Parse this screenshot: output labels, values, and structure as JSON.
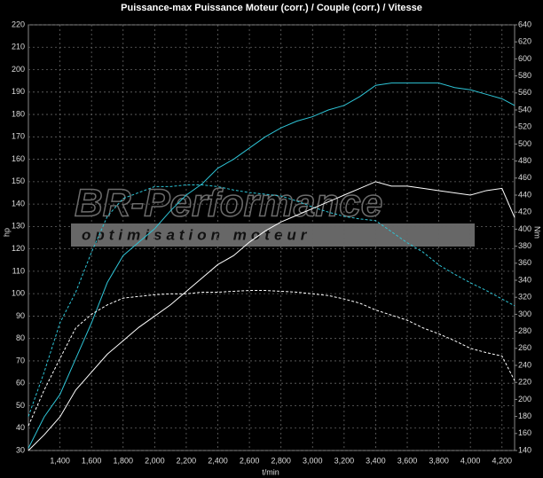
{
  "chart_data": {
    "type": "line",
    "title": "Puissance-max Puissance Moteur (corr.) / Couple (corr.) / Vitesse",
    "xlabel": "t/min",
    "ylabel": "hp",
    "y2label": "Nm",
    "watermark": [
      "BR-Performance",
      "optimisation moteur"
    ],
    "x": [
      1200,
      1300,
      1400,
      1500,
      1600,
      1700,
      1800,
      1900,
      2000,
      2100,
      2200,
      2300,
      2400,
      2500,
      2600,
      2700,
      2800,
      2900,
      3000,
      3100,
      3200,
      3300,
      3400,
      3500,
      3600,
      3700,
      3800,
      3900,
      4000,
      4100,
      4200,
      4280
    ],
    "series": [
      {
        "color": "#2ec4d6",
        "dash": false,
        "axis": "y",
        "values": [
          31,
          45,
          55,
          71,
          87,
          105,
          117,
          123,
          129,
          137,
          144,
          149,
          156,
          160,
          165,
          170,
          174,
          177,
          179,
          182,
          184,
          188,
          193,
          194,
          194,
          194,
          194,
          192,
          191,
          189,
          187,
          184
        ]
      },
      {
        "color": "#2ec4d6",
        "dash": true,
        "axis": "y2",
        "values": [
          180,
          232,
          290,
          326,
          373,
          415,
          436,
          443,
          450,
          450,
          452,
          452,
          450,
          446,
          443,
          441,
          439,
          433,
          426,
          420,
          415,
          412,
          410,
          397,
          384,
          373,
          358,
          347,
          337,
          328,
          318,
          310
        ]
      },
      {
        "color": "#ffffff",
        "dash": false,
        "axis": "y",
        "values": [
          30,
          37,
          45,
          57,
          65,
          73,
          79,
          85,
          90,
          95,
          101,
          107,
          113,
          117,
          123,
          128,
          132,
          135,
          138,
          141,
          144,
          147,
          150,
          148,
          148,
          147,
          146,
          145,
          144,
          146,
          147,
          134
        ]
      },
      {
        "color": "#ffffff",
        "dash": true,
        "axis": "y2",
        "values": [
          169,
          211,
          248,
          284,
          300,
          311,
          319,
          321,
          323,
          324,
          324,
          326,
          326,
          327,
          328,
          328,
          327,
          326,
          324,
          322,
          318,
          313,
          305,
          299,
          293,
          284,
          277,
          269,
          260,
          255,
          251,
          222
        ]
      }
    ],
    "xlim": [
      1200,
      4280
    ],
    "xticks": [
      {
        "value": 1400,
        "label": "1,400"
      },
      {
        "value": 1600,
        "label": "1,600"
      },
      {
        "value": 1800,
        "label": "1,800"
      },
      {
        "value": 2000,
        "label": "2,000"
      },
      {
        "value": 2200,
        "label": "2,200"
      },
      {
        "value": 2400,
        "label": "2,400"
      },
      {
        "value": 2600,
        "label": "2,600"
      },
      {
        "value": 2800,
        "label": "2,800"
      },
      {
        "value": 3000,
        "label": "3,000"
      },
      {
        "value": 3200,
        "label": "3,200"
      },
      {
        "value": 3400,
        "label": "3,400"
      },
      {
        "value": 3600,
        "label": "3,600"
      },
      {
        "value": 3800,
        "label": "3,800"
      },
      {
        "value": 4000,
        "label": "4,000"
      },
      {
        "value": 4200,
        "label": "4,200"
      }
    ],
    "ylim": [
      30,
      220
    ],
    "yticks": [
      30,
      40,
      50,
      60,
      70,
      80,
      90,
      100,
      110,
      120,
      130,
      140,
      150,
      160,
      170,
      180,
      190,
      200,
      210,
      220
    ],
    "y2lim": [
      140,
      640
    ],
    "y2ticks": [
      140,
      160,
      180,
      200,
      220,
      240,
      260,
      280,
      300,
      320,
      340,
      360,
      380,
      400,
      420,
      440,
      460,
      480,
      500,
      520,
      540,
      560,
      580,
      600,
      620,
      640
    ],
    "grid": true
  }
}
